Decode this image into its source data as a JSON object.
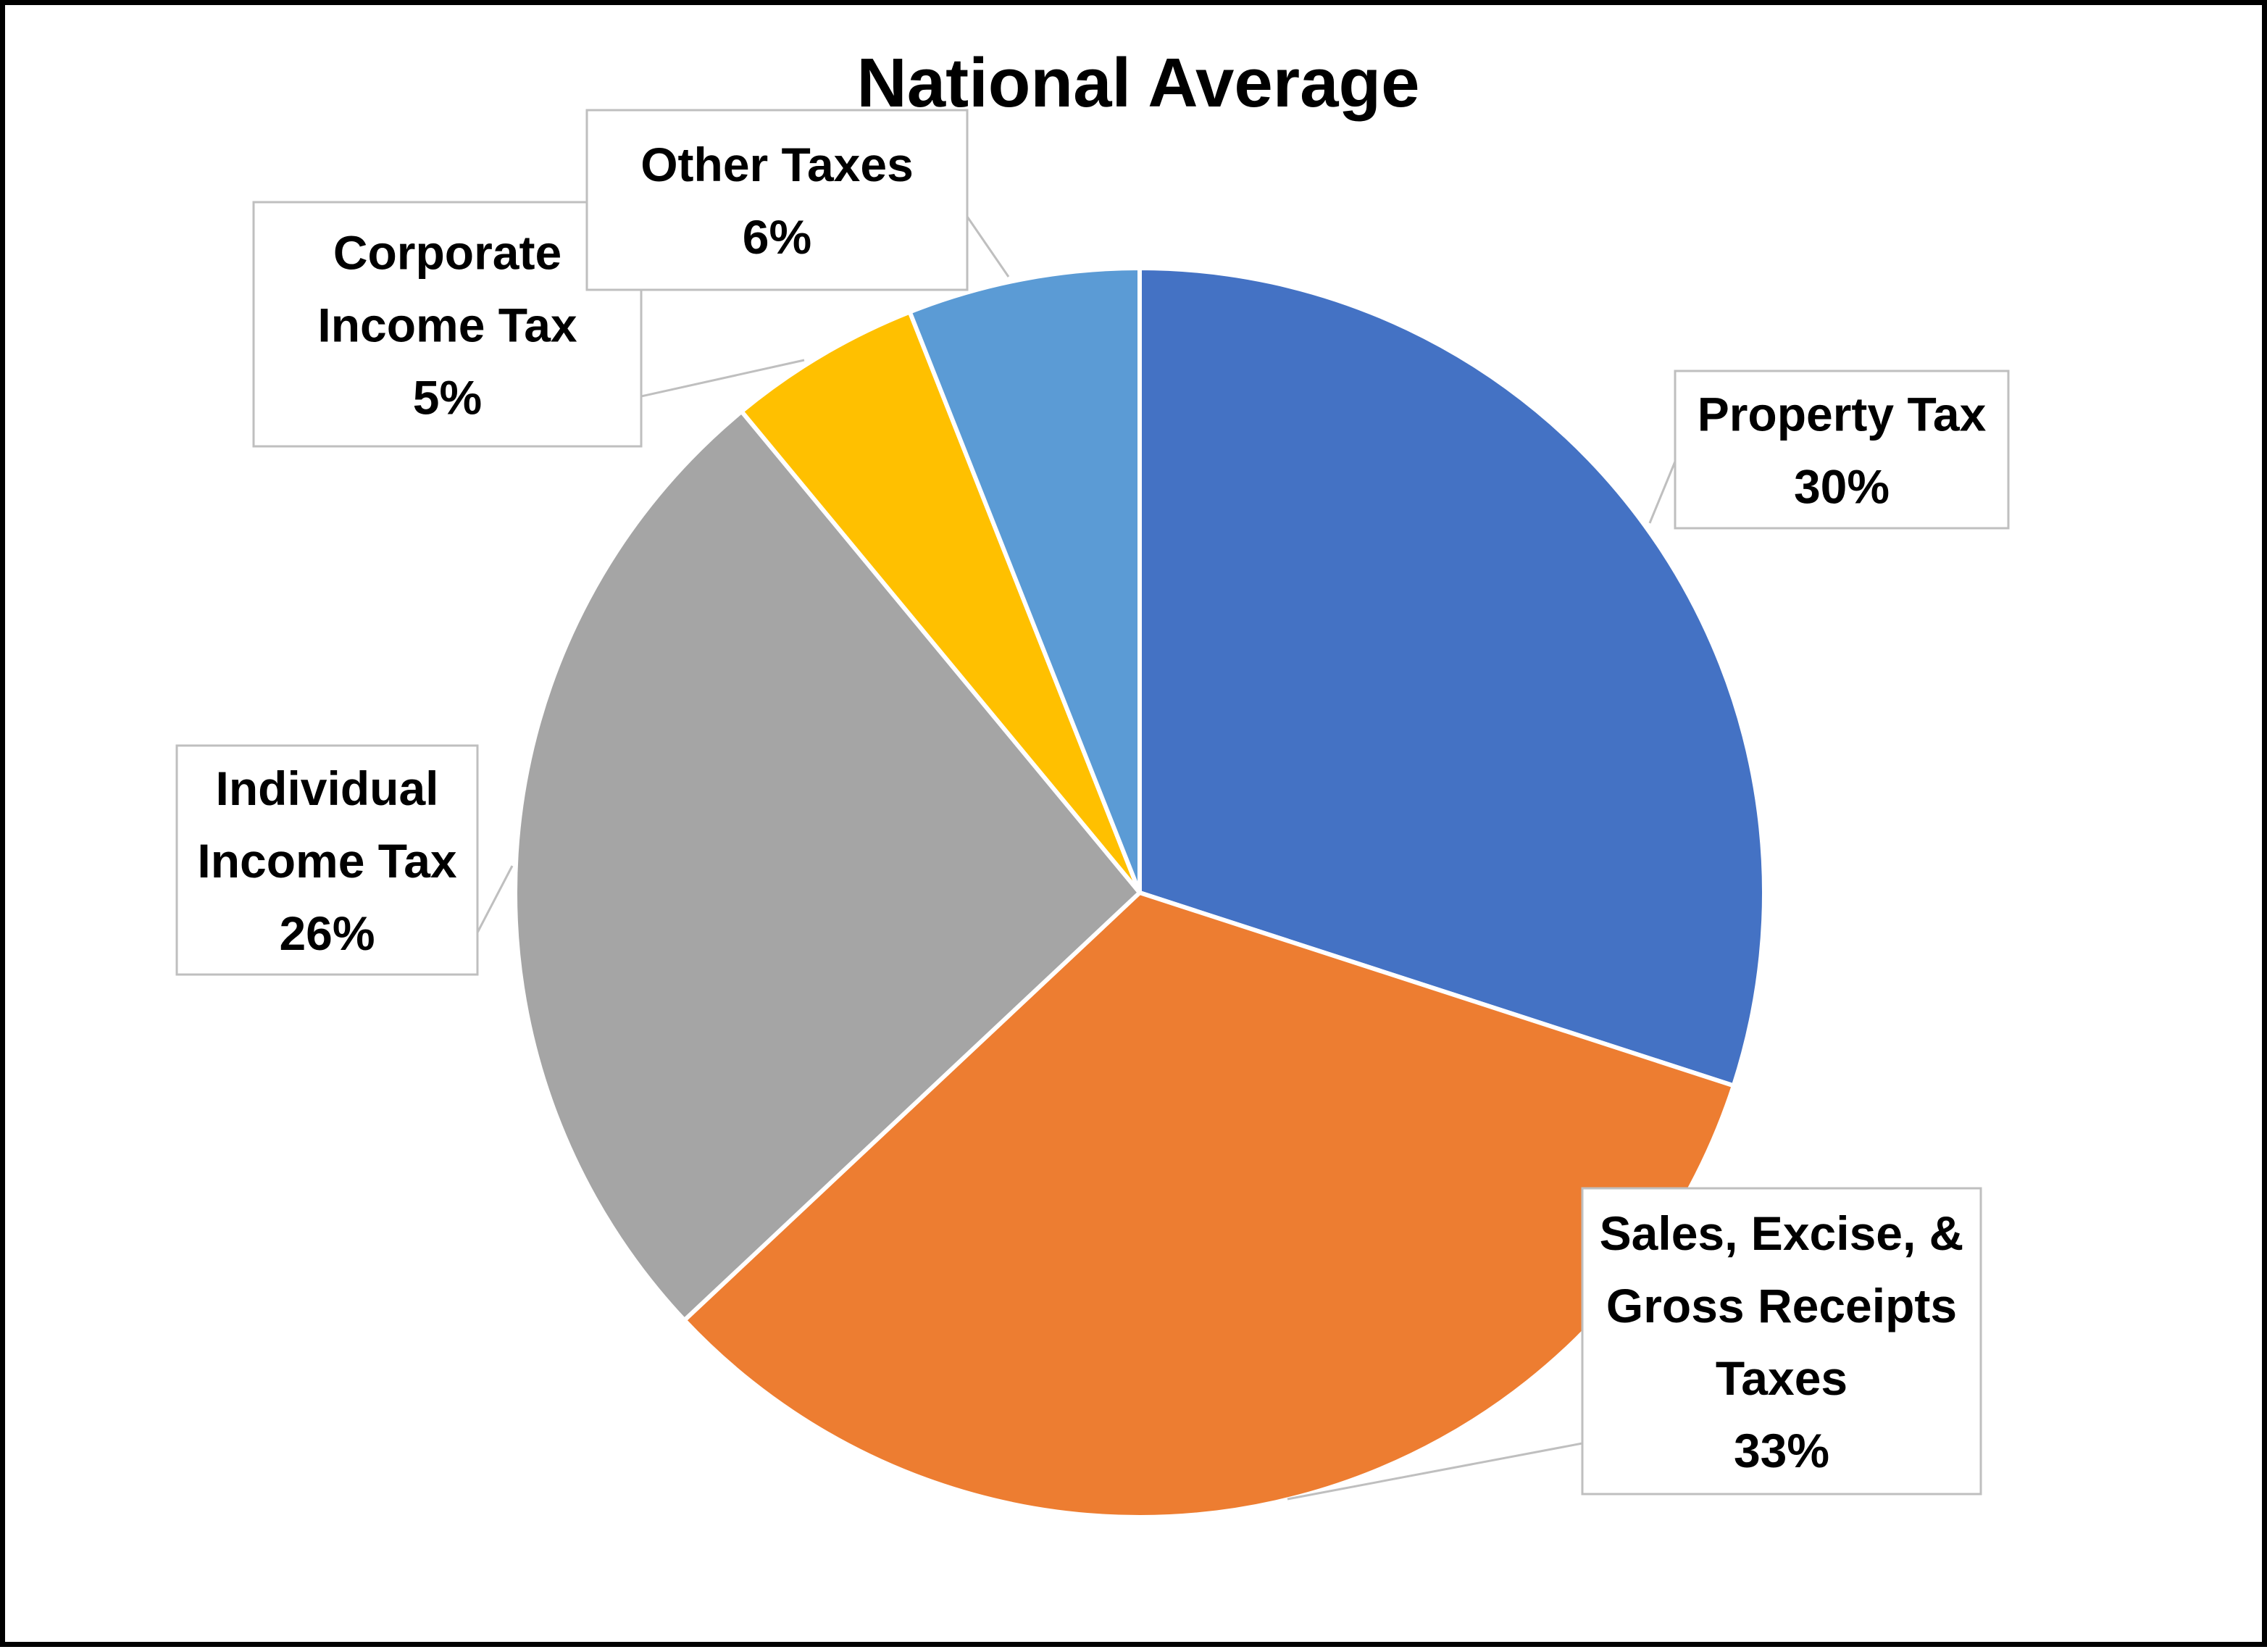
{
  "chart_data": {
    "type": "pie",
    "title": "National Average",
    "start_angle_deg": 0,
    "direction": "clockwise",
    "legend": "none",
    "slices": [
      {
        "label_lines": [
          "Property Tax"
        ],
        "value_label": "30%",
        "value": 30,
        "color": "#4472C4"
      },
      {
        "label_lines": [
          "Sales, Excise, &",
          "Gross Receipts",
          "Taxes"
        ],
        "value_label": "33%",
        "value": 33,
        "color": "#ED7D31"
      },
      {
        "label_lines": [
          "Individual",
          "Income Tax"
        ],
        "value_label": "26%",
        "value": 26,
        "color": "#A5A5A5"
      },
      {
        "label_lines": [
          "Corporate",
          "Income Tax"
        ],
        "value_label": "5%",
        "value": 5,
        "color": "#FFC000"
      },
      {
        "label_lines": [
          "Other Taxes"
        ],
        "value_label": "6%",
        "value": 6,
        "color": "#5B9BD5"
      }
    ]
  }
}
